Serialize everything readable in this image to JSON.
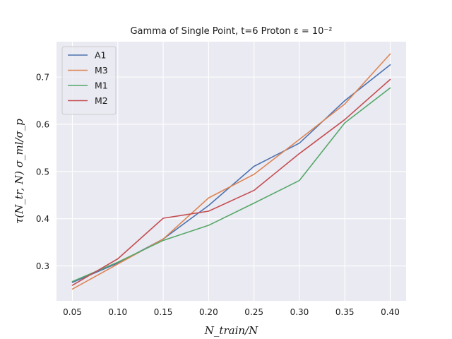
{
  "chart_data": {
    "type": "line",
    "title": "Gamma of Single Point, t=6 Proton  ε = 10⁻²",
    "xlabel": "N_train/N",
    "ylabel": "τ(N_tr, N) σ_ml/σ_p",
    "x": [
      0.05,
      0.1,
      0.15,
      0.2,
      0.25,
      0.3,
      0.35,
      0.4
    ],
    "xlim": [
      0.0325,
      0.4175
    ],
    "ylim": [
      0.226,
      0.775
    ],
    "xticks": [
      "0.05",
      "0.10",
      "0.15",
      "0.20",
      "0.25",
      "0.30",
      "0.35",
      "0.40"
    ],
    "yticks": [
      "0.3",
      "0.4",
      "0.5",
      "0.6",
      "0.7"
    ],
    "grid": true,
    "legend_position": "upper-left",
    "series": [
      {
        "name": "A1",
        "color": "#4c72b0",
        "values": [
          0.265,
          0.306,
          0.357,
          0.428,
          0.511,
          0.56,
          0.65,
          0.726
        ]
      },
      {
        "name": "M3",
        "color": "#dd8452",
        "values": [
          0.251,
          0.304,
          0.357,
          0.444,
          0.494,
          0.568,
          0.643,
          0.749
        ]
      },
      {
        "name": "M1",
        "color": "#55a868",
        "values": [
          0.267,
          0.308,
          0.354,
          0.386,
          0.433,
          0.481,
          0.603,
          0.677
        ]
      },
      {
        "name": "M2",
        "color": "#c44e52",
        "values": [
          0.259,
          0.315,
          0.401,
          0.416,
          0.46,
          0.538,
          0.61,
          0.695
        ]
      }
    ]
  }
}
